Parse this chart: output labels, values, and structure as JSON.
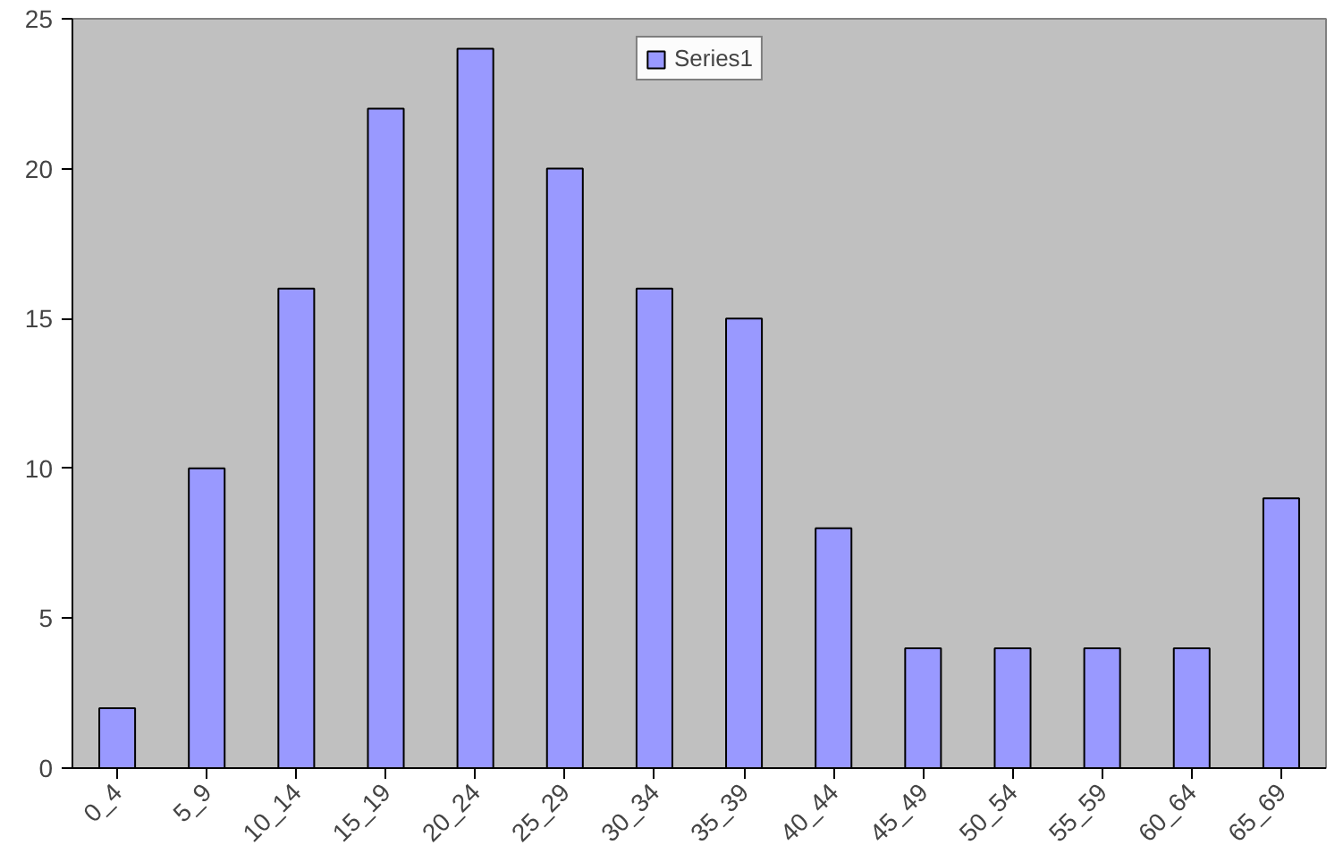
{
  "chart_data": {
    "type": "bar",
    "categories": [
      "0_4",
      "5_9",
      "10_14",
      "15_19",
      "20_24",
      "25_29",
      "30_34",
      "35_39",
      "40_44",
      "45_49",
      "50_54",
      "55_59",
      "60_64",
      "65_69"
    ],
    "series": [
      {
        "name": "Series1",
        "color": "#9999ff",
        "values": [
          2,
          10,
          16,
          22,
          24,
          20,
          16,
          15,
          8,
          4,
          4,
          4,
          4,
          9
        ]
      }
    ],
    "ylim": [
      0,
      25
    ],
    "yticks": [
      0,
      5,
      10,
      15,
      20,
      25
    ],
    "grid": false,
    "legend": "top"
  }
}
